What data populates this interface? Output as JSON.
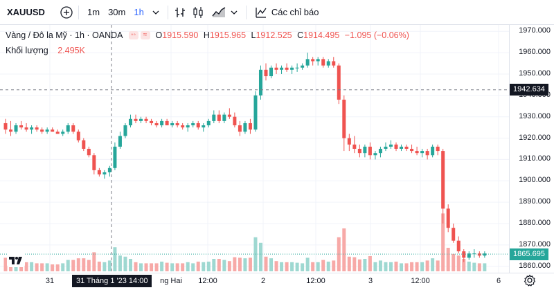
{
  "toolbar": {
    "symbol": "XAUUSD",
    "timeframes": [
      "1m",
      "30m",
      "1h"
    ],
    "active_timeframe": "1h",
    "indicators_label": "Các chỉ báo"
  },
  "legend": {
    "description": "Vàng / Đô la Mỹ · 1h · OANDA",
    "open_key": "O",
    "open": "1915.590",
    "high_key": "H",
    "high": "1915.965",
    "low_key": "L",
    "low": "1912.525",
    "close_key": "C",
    "close": "1914.495",
    "change": "−1.095 (−0.06%)",
    "volume_label": "Khối lượng",
    "volume_value": "2.495K"
  },
  "price_axis": {
    "ticks": [
      "1970.000",
      "1960.000",
      "1950.000",
      "1940.000",
      "1930.000",
      "1920.000",
      "1910.000",
      "1900.000",
      "1890.000",
      "1880.000",
      "1870.000",
      "1860.000"
    ],
    "crosshair_price": "1942.634",
    "last_price": "1865.695"
  },
  "time_axis": {
    "labels": [
      "31",
      "ng Hai",
      "12:00",
      "2",
      "12:00",
      "3",
      "12:00",
      "6"
    ],
    "crosshair_time": "31 Tháng 1 '23   14:00"
  },
  "colors": {
    "up": "#26a69a",
    "down": "#ef5350",
    "up_volume": "#9ed8d1",
    "down_volume": "#f7a9a7",
    "grid": "#f0f3fa",
    "crosshair_badge": "#131722"
  },
  "chart_data": {
    "type": "candlestick",
    "ylim": [
      1857,
      1973
    ],
    "series": [
      {
        "name": "Vàng / Đô la Mỹ",
        "ohlc": [
          [
            1927,
            1929,
            1922,
            1924
          ],
          [
            1924,
            1928,
            1921,
            1923
          ],
          [
            1923,
            1927,
            1922,
            1926
          ],
          [
            1926,
            1928,
            1924,
            1925
          ],
          [
            1925,
            1927,
            1923,
            1924
          ],
          [
            1924,
            1926,
            1922,
            1925
          ],
          [
            1925,
            1926,
            1923,
            1924
          ],
          [
            1924,
            1925,
            1922,
            1923
          ],
          [
            1923,
            1925,
            1922,
            1924
          ],
          [
            1924,
            1925,
            1923,
            1923
          ],
          [
            1923,
            1924,
            1922,
            1922
          ],
          [
            1922,
            1924,
            1921,
            1923
          ],
          [
            1923,
            1927,
            1922,
            1926
          ],
          [
            1926,
            1927,
            1922,
            1923
          ],
          [
            1923,
            1924,
            1918,
            1919
          ],
          [
            1919,
            1920,
            1914,
            1915
          ],
          [
            1915,
            1916,
            1911,
            1912
          ],
          [
            1912,
            1913,
            1903,
            1905
          ],
          [
            1905,
            1906,
            1902,
            1903
          ],
          [
            1903,
            1905,
            1901,
            1904
          ],
          [
            1904,
            1907,
            1902,
            1906
          ],
          [
            1906,
            1918,
            1905,
            1916
          ],
          [
            1916,
            1923,
            1915,
            1921
          ],
          [
            1921,
            1927,
            1920,
            1926
          ],
          [
            1926,
            1931,
            1925,
            1929
          ],
          [
            1929,
            1931,
            1927,
            1928
          ],
          [
            1928,
            1930,
            1927,
            1929
          ],
          [
            1929,
            1930,
            1927,
            1928
          ],
          [
            1928,
            1929,
            1926,
            1927
          ],
          [
            1927,
            1928,
            1925,
            1926
          ],
          [
            1926,
            1929,
            1925,
            1928
          ],
          [
            1928,
            1929,
            1926,
            1926
          ],
          [
            1926,
            1928,
            1925,
            1927
          ],
          [
            1927,
            1928,
            1925,
            1926
          ],
          [
            1926,
            1927,
            1924,
            1925
          ],
          [
            1925,
            1927,
            1923,
            1926
          ],
          [
            1926,
            1928,
            1925,
            1927
          ],
          [
            1927,
            1928,
            1924,
            1925
          ],
          [
            1925,
            1927,
            1923,
            1926
          ],
          [
            1926,
            1929,
            1925,
            1928
          ],
          [
            1928,
            1933,
            1927,
            1931
          ],
          [
            1931,
            1933,
            1927,
            1928
          ],
          [
            1928,
            1932,
            1927,
            1931
          ],
          [
            1931,
            1934,
            1929,
            1930
          ],
          [
            1930,
            1932,
            1925,
            1926
          ],
          [
            1926,
            1928,
            1921,
            1923
          ],
          [
            1923,
            1928,
            1922,
            1927
          ],
          [
            1927,
            1929,
            1922,
            1924
          ],
          [
            1924,
            1942,
            1923,
            1940
          ],
          [
            1940,
            1954,
            1938,
            1952
          ],
          [
            1952,
            1955,
            1947,
            1949
          ],
          [
            1949,
            1954,
            1948,
            1953
          ],
          [
            1953,
            1955,
            1950,
            1952
          ],
          [
            1952,
            1954,
            1950,
            1953
          ],
          [
            1953,
            1955,
            1951,
            1952
          ],
          [
            1952,
            1954,
            1950,
            1953
          ],
          [
            1953,
            1955,
            1951,
            1953
          ],
          [
            1953,
            1955,
            1952,
            1954
          ],
          [
            1954,
            1960,
            1953,
            1957
          ],
          [
            1957,
            1958,
            1954,
            1956
          ],
          [
            1956,
            1958,
            1954,
            1957
          ],
          [
            1957,
            1958,
            1953,
            1954
          ],
          [
            1954,
            1957,
            1953,
            1956
          ],
          [
            1956,
            1958,
            1953,
            1954
          ],
          [
            1954,
            1955,
            1936,
            1938
          ],
          [
            1938,
            1940,
            1914,
            1920
          ],
          [
            1920,
            1922,
            1914,
            1917
          ],
          [
            1917,
            1921,
            1913,
            1915
          ],
          [
            1915,
            1917,
            1911,
            1913
          ],
          [
            1913,
            1917,
            1911,
            1916
          ],
          [
            1916,
            1918,
            1910,
            1912
          ],
          [
            1912,
            1914,
            1910,
            1913
          ],
          [
            1913,
            1916,
            1911,
            1915
          ],
          [
            1915,
            1918,
            1914,
            1916
          ],
          [
            1916,
            1919,
            1915,
            1917
          ],
          [
            1917,
            1918,
            1914,
            1915
          ],
          [
            1915,
            1917,
            1914,
            1916
          ],
          [
            1916,
            1917,
            1914,
            1915
          ],
          [
            1915,
            1917,
            1913,
            1914
          ],
          [
            1914,
            1916,
            1912,
            1913
          ],
          [
            1913,
            1915,
            1911,
            1914
          ],
          [
            1914,
            1915,
            1910,
            1912
          ],
          [
            1912,
            1917,
            1911,
            1916
          ],
          [
            1916,
            1917,
            1912,
            1914
          ],
          [
            1914,
            1915,
            1880,
            1887
          ],
          [
            1887,
            1889,
            1876,
            1878
          ],
          [
            1878,
            1880,
            1871,
            1872
          ],
          [
            1872,
            1874,
            1866,
            1867
          ],
          [
            1867,
            1868,
            1862,
            1864
          ],
          [
            1864,
            1867,
            1863,
            1866
          ],
          [
            1866,
            1868,
            1864,
            1866
          ],
          [
            1866,
            1867,
            1864,
            1865
          ],
          [
            1865,
            1867,
            1864,
            1866
          ]
        ]
      }
    ]
  }
}
